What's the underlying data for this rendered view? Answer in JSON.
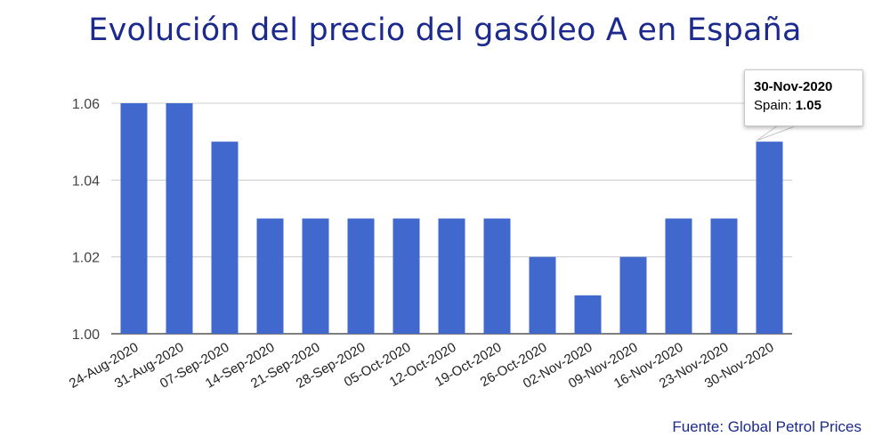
{
  "title": "Evolución del precio del gasóleo A en España",
  "source_note": "Fuente: Global Petrol Prices",
  "tooltip": {
    "date": "30-Nov-2020",
    "series_label": "Spain:",
    "value": "1.05"
  },
  "colors": {
    "bar": "#4169cd",
    "title": "#1b2a8c",
    "grid": "#cccccc"
  },
  "chart_data": {
    "type": "bar",
    "categories": [
      "24-Aug-2020",
      "31-Aug-2020",
      "07-Sep-2020",
      "14-Sep-2020",
      "21-Sep-2020",
      "28-Sep-2020",
      "05-Oct-2020",
      "12-Oct-2020",
      "19-Oct-2020",
      "26-Oct-2020",
      "02-Nov-2020",
      "09-Nov-2020",
      "16-Nov-2020",
      "23-Nov-2020",
      "30-Nov-2020"
    ],
    "series": [
      {
        "name": "Spain",
        "values": [
          1.06,
          1.06,
          1.05,
          1.03,
          1.03,
          1.03,
          1.03,
          1.03,
          1.03,
          1.02,
          1.01,
          1.02,
          1.03,
          1.03,
          1.05
        ]
      }
    ],
    "ylim": [
      1.0,
      1.06
    ],
    "yticks": [
      "1.00",
      "1.02",
      "1.04",
      "1.06"
    ],
    "grid": true,
    "xlabel": "",
    "ylabel": ""
  }
}
